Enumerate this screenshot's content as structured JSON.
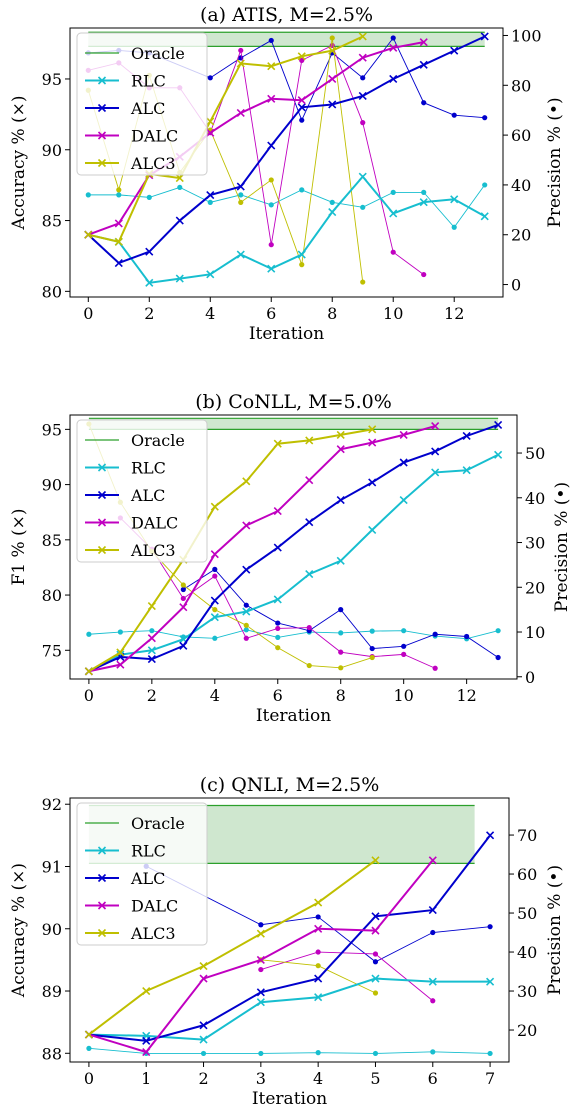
{
  "colors": {
    "RLC": "#17becf",
    "ALC": "#0000cc",
    "DALC": "#c000c0",
    "ALC3": "#bfbf00",
    "Oracle": "#2ca02c",
    "oracle_fill": "#cfe7cf"
  },
  "chart_data": [
    {
      "type": "line",
      "title": "(a) ATIS, M=2.5%",
      "xlabel": "Iteration",
      "ylabel": "Accuracy % (×)",
      "ylabel2": "Precision % (•)",
      "xlim": [
        -0.6,
        13.6
      ],
      "ylim": [
        79.6,
        98.6
      ],
      "y2lim": [
        -5,
        103
      ],
      "xticks": [
        0,
        2,
        4,
        6,
        8,
        10,
        12
      ],
      "yticks": [
        80,
        85,
        90,
        95
      ],
      "y2ticks": [
        0,
        20,
        40,
        60,
        80,
        100
      ],
      "grid": false,
      "legend": "top-left",
      "oracle_band": [
        97.3,
        98.3
      ],
      "series": [
        {
          "name": "Oracle",
          "values": []
        },
        {
          "name": "RLC",
          "x": [
            0,
            1,
            2,
            3,
            4,
            5,
            6,
            7,
            8,
            9,
            10,
            11,
            12,
            13
          ],
          "accuracy": [
            84.0,
            83.5,
            80.6,
            80.9,
            81.2,
            82.6,
            81.6,
            82.6,
            85.6,
            88.1,
            85.5,
            86.3,
            86.5,
            85.3
          ],
          "precision": [
            36,
            36,
            35,
            39,
            33,
            36,
            32,
            38,
            33,
            31,
            37,
            37,
            23,
            40
          ]
        },
        {
          "name": "ALC",
          "x": [
            0,
            1,
            2,
            3,
            4,
            5,
            6,
            7,
            8,
            9,
            10,
            11,
            12,
            13
          ],
          "accuracy": [
            84.0,
            82.0,
            82.8,
            85.0,
            86.8,
            87.4,
            90.3,
            93.0,
            93.2,
            93.8,
            95.0,
            96.0,
            97.0,
            98.0
          ],
          "precision": [
            93,
            94,
            93,
            null,
            83,
            91,
            98,
            66,
            93,
            83,
            99,
            73,
            68,
            67
          ]
        },
        {
          "name": "DALC",
          "x": [
            0,
            1,
            2,
            3,
            4,
            5,
            6,
            7,
            8,
            9,
            10,
            11
          ],
          "accuracy": [
            84.0,
            84.8,
            88.2,
            89.5,
            91.2,
            92.6,
            93.6,
            93.5,
            95.0,
            96.5,
            97.2,
            97.6
          ],
          "precision": [
            86,
            89,
            79,
            79,
            61,
            94,
            16,
            90,
            96,
            65,
            13,
            4
          ]
        },
        {
          "name": "ALC3",
          "x": [
            0,
            1,
            2,
            3,
            4,
            5,
            6,
            7,
            8,
            9
          ],
          "accuracy": [
            84.0,
            83.5,
            88.3,
            88.0,
            92.0,
            96.1,
            95.9,
            96.6,
            97.0,
            98.0
          ],
          "precision": [
            78,
            38,
            84,
            45,
            62,
            33,
            42,
            8,
            99,
            1
          ]
        }
      ]
    },
    {
      "type": "line",
      "title": "(b) CoNLL, M=5.0%",
      "xlabel": "Iteration",
      "ylabel": "F1 % (×)",
      "ylabel2": "Precision % (•)",
      "xlim": [
        -0.6,
        13.6
      ],
      "ylim": [
        72.4,
        96.3
      ],
      "y2lim": [
        -0.5,
        58.5
      ],
      "xticks": [
        0,
        2,
        4,
        6,
        8,
        10,
        12
      ],
      "yticks": [
        75,
        80,
        85,
        90,
        95
      ],
      "y2ticks": [
        0,
        10,
        20,
        30,
        40,
        50
      ],
      "grid": false,
      "legend": "top-left",
      "oracle_band": [
        95.0,
        96.0
      ],
      "series": [
        {
          "name": "Oracle",
          "values": []
        },
        {
          "name": "RLC",
          "x": [
            0,
            1,
            2,
            3,
            4,
            5,
            6,
            7,
            8,
            9,
            10,
            11,
            12,
            13
          ],
          "f1": [
            73.1,
            74.6,
            75.0,
            76.0,
            78.0,
            78.5,
            79.6,
            81.9,
            83.1,
            85.9,
            88.6,
            91.1,
            91.3,
            92.7
          ],
          "precision": [
            9.5,
            10,
            10.3,
            8.9,
            8.6,
            10.5,
            8.8,
            10,
            9.8,
            10.2,
            10.3,
            9.1,
            8.5,
            10.3
          ]
        },
        {
          "name": "ALC",
          "x": [
            0,
            1,
            2,
            3,
            4,
            5,
            6,
            7,
            8,
            9,
            10,
            11,
            12,
            13
          ],
          "f1": [
            73.1,
            74.4,
            74.2,
            75.4,
            79.5,
            82.3,
            84.3,
            86.6,
            88.6,
            90.2,
            92.0,
            93.0,
            94.4,
            95.4
          ],
          "precision": [
            null,
            null,
            null,
            19.5,
            24,
            16,
            12,
            10.3,
            15,
            6.3,
            6.8,
            9.5,
            9,
            4.3
          ]
        },
        {
          "name": "DALC",
          "x": [
            0,
            1,
            2,
            3,
            4,
            5,
            6,
            7,
            8,
            9,
            10,
            11
          ],
          "f1": [
            73.1,
            73.7,
            76.1,
            78.9,
            83.7,
            86.3,
            87.6,
            90.4,
            93.2,
            93.8,
            94.5,
            95.3
          ],
          "precision": [
            null,
            35.5,
            28.5,
            17.5,
            22.5,
            8.6,
            10.8,
            11,
            5.5,
            4.5,
            5,
            1.9
          ]
        },
        {
          "name": "ALC3",
          "x": [
            0,
            1,
            2,
            3,
            4,
            5,
            6,
            7,
            8,
            9
          ],
          "f1": [
            73.1,
            74.8,
            79.0,
            83.2,
            88.0,
            90.3,
            93.7,
            94.0,
            94.5,
            95.0
          ],
          "precision": [
            56.5,
            39,
            28,
            20.5,
            15,
            11.5,
            6.5,
            2.5,
            2,
            4.3
          ]
        }
      ]
    },
    {
      "type": "line",
      "title": "(c) QNLI, M=2.5%",
      "xlabel": "Iteration",
      "ylabel": "Accuracy % (×)",
      "ylabel2": "Precision % (•)",
      "xlim": [
        -0.33,
        7.33
      ],
      "ylim": [
        87.86,
        92.1
      ],
      "y2lim": [
        11.8,
        79.5
      ],
      "xticks": [
        0,
        1,
        2,
        3,
        4,
        5,
        6,
        7
      ],
      "yticks": [
        88,
        89,
        90,
        91,
        92
      ],
      "y2ticks": [
        20,
        30,
        40,
        50,
        60,
        70
      ],
      "grid": false,
      "legend": "top-left",
      "oracle_band": [
        91.05,
        91.98
      ],
      "series": [
        {
          "name": "Oracle",
          "values": []
        },
        {
          "name": "RLC",
          "x": [
            0,
            1,
            2,
            3,
            4,
            5,
            6,
            7
          ],
          "accuracy": [
            88.3,
            88.28,
            88.22,
            88.82,
            88.9,
            89.2,
            89.15,
            89.15
          ],
          "precision": [
            15.3,
            14,
            14,
            14,
            14.2,
            14,
            14.4,
            14
          ]
        },
        {
          "name": "ALC",
          "x": [
            0,
            1,
            2,
            3,
            4,
            5,
            6,
            7
          ],
          "accuracy": [
            88.3,
            88.2,
            88.45,
            88.98,
            89.2,
            90.2,
            90.3,
            91.5
          ],
          "precision": [
            null,
            62,
            null,
            47,
            49,
            37.5,
            45,
            46.5
          ]
        },
        {
          "name": "DALC",
          "x": [
            0,
            1,
            2,
            3,
            4,
            5,
            6
          ],
          "accuracy": [
            88.3,
            88.02,
            89.2,
            89.5,
            90.0,
            89.97,
            91.1
          ],
          "precision": [
            null,
            null,
            null,
            35.5,
            40,
            39.5,
            27.5
          ]
        },
        {
          "name": "ALC3",
          "x": [
            0,
            1,
            2,
            3,
            4,
            5
          ],
          "accuracy": [
            88.3,
            89.0,
            89.4,
            89.92,
            90.42,
            91.1
          ],
          "precision": [
            null,
            null,
            null,
            38,
            36.5,
            29.5
          ]
        }
      ]
    }
  ]
}
